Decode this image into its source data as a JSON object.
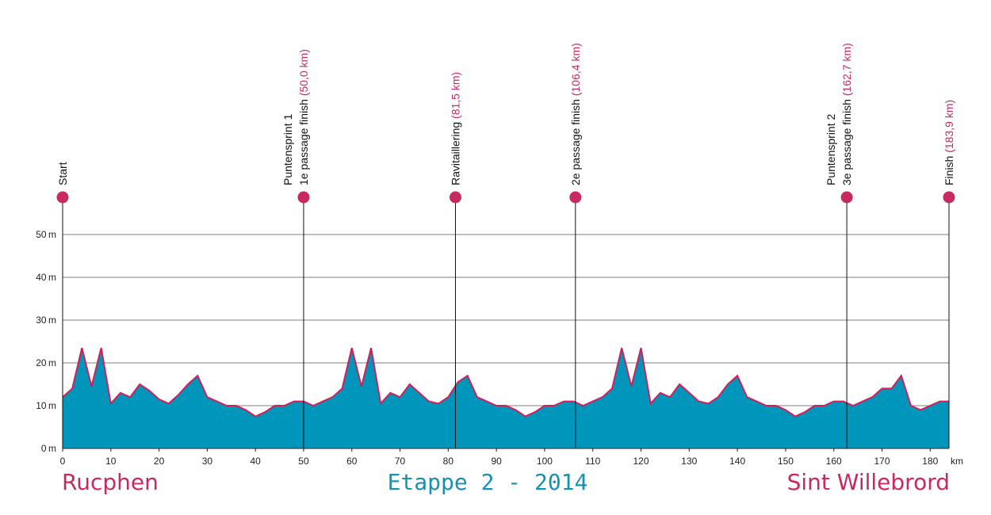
{
  "chart_data": {
    "type": "area",
    "xlabel": "km",
    "ylabel": "m",
    "xlim": [
      0,
      183.9
    ],
    "ylim": [
      0,
      55
    ],
    "x_ticks": [
      0,
      10,
      20,
      30,
      40,
      50,
      60,
      70,
      80,
      90,
      100,
      110,
      120,
      130,
      140,
      150,
      160,
      170,
      180
    ],
    "y_ticks": [
      0,
      10,
      20,
      30,
      40,
      50
    ],
    "y_tick_unit": "m",
    "x_unit": "km",
    "grid": true,
    "fill_color": "#0095bb",
    "line_color": "#d21f5a",
    "marker_color": "#c8295f",
    "series": [
      {
        "x": [
          0,
          2,
          4,
          6,
          8,
          10,
          12,
          14,
          16,
          18,
          20,
          22,
          24,
          26,
          28,
          30,
          32,
          34,
          36,
          38,
          40,
          42,
          44,
          46,
          48,
          50,
          52,
          54,
          56,
          58,
          60,
          62,
          64,
          66,
          68,
          70,
          72,
          74,
          76,
          78,
          80,
          82,
          84,
          86,
          88,
          90,
          92,
          94,
          96,
          98,
          100,
          102,
          104,
          106,
          108,
          110,
          112,
          114,
          116,
          118,
          120,
          122,
          124,
          126,
          128,
          130,
          132,
          134,
          136,
          138,
          140,
          142,
          144,
          146,
          148,
          150,
          152,
          154,
          156,
          158,
          160,
          162,
          164,
          166,
          168,
          170,
          172,
          174,
          176,
          178,
          180,
          182,
          183.9
        ],
        "y": [
          12,
          14,
          23.5,
          14.5,
          23.5,
          10.5,
          13,
          12,
          15,
          13.5,
          11.5,
          10.5,
          12.5,
          15,
          17,
          12,
          11,
          10,
          10,
          9,
          7.5,
          8.5,
          10,
          10,
          11,
          11,
          10,
          11,
          12,
          14,
          23.5,
          14.5,
          23.5,
          10.5,
          13,
          12,
          15,
          13,
          11,
          10.5,
          12,
          15.5,
          17,
          12,
          11,
          10,
          10,
          9,
          7.5,
          8.5,
          10,
          10,
          11,
          11,
          10,
          11,
          12,
          14,
          23.5,
          14.5,
          23.5,
          10.5,
          13,
          12,
          15,
          13,
          11,
          10.5,
          12,
          15,
          17,
          12,
          11,
          10,
          10,
          9,
          7.5,
          8.5,
          10,
          10,
          11,
          11,
          10,
          11,
          12,
          14,
          14,
          17,
          10,
          9,
          10,
          11,
          11
        ]
      }
    ],
    "markers": [
      {
        "km": 0,
        "lines": [
          "Start"
        ],
        "km_label": ""
      },
      {
        "km": 50,
        "lines": [
          "Puntensprint 1",
          "1e passage finish"
        ],
        "km_label": "(50,0 km)"
      },
      {
        "km": 81.5,
        "lines": [
          "Ravitaillering"
        ],
        "km_label": "(81,5 km)"
      },
      {
        "km": 106.4,
        "lines": [
          "2e passage finish"
        ],
        "km_label": "(106,4 km)"
      },
      {
        "km": 162.7,
        "lines": [
          "Puntensprint 2",
          "3e passage finish"
        ],
        "km_label": "(162,7 km)"
      },
      {
        "km": 183.9,
        "lines": [
          "Finish"
        ],
        "km_label": "(183,9 km)"
      }
    ]
  },
  "footer": {
    "start_city": "Rucphen",
    "stage_title": "Etappe 2 - 2014",
    "finish_city": "Sint Willebrord"
  }
}
